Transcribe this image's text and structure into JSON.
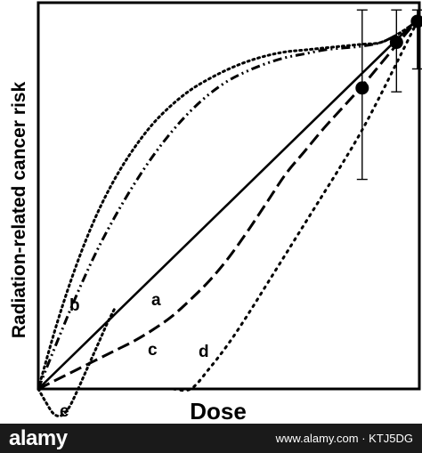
{
  "chart_data": {
    "type": "line",
    "xlabel": "Dose",
    "ylabel": "Radiation-related cancer risk",
    "xlim": [
      0,
      100
    ],
    "ylim": [
      -7,
      100
    ],
    "grid": false,
    "data_points": {
      "x": [
        85,
        94,
        99.5
      ],
      "y": [
        79,
        91,
        96.5
      ],
      "err_low": [
        55,
        78,
        84
      ],
      "err_high": [
        99.5,
        99.5,
        99.5
      ]
    },
    "series": [
      {
        "name": "a",
        "style": "solid",
        "x": [
          0,
          100
        ],
        "y": [
          0,
          97.5
        ]
      },
      {
        "name": "b",
        "style": "dotted",
        "x": [
          0,
          5,
          10,
          15,
          20,
          25,
          30,
          35,
          40,
          45,
          50,
          55,
          60,
          65,
          70,
          75,
          80,
          85,
          90,
          95,
          100
        ],
        "y": [
          0,
          17.5,
          32.5,
          45,
          55,
          63,
          69.5,
          74.5,
          78.5,
          81.5,
          84,
          86,
          87.5,
          88.5,
          89,
          89.5,
          90,
          90.5,
          91,
          93.5,
          97
        ]
      },
      {
        "name": "",
        "style": "dash-dot-dot",
        "x": [
          0,
          5,
          10,
          15,
          20,
          25,
          30,
          35,
          40,
          45,
          50,
          55,
          60,
          65,
          70,
          75,
          80,
          85,
          90,
          95,
          100
        ],
        "y": [
          0,
          12.5,
          24.5,
          35.5,
          45,
          53.5,
          61,
          67.5,
          73,
          77.5,
          81,
          83.5,
          85.5,
          87,
          88,
          89,
          89.5,
          90,
          91,
          93.5,
          97
        ]
      },
      {
        "name": "c",
        "style": "dashed",
        "x": [
          0,
          10,
          20,
          25,
          30,
          35,
          40,
          45,
          50,
          55,
          60,
          65,
          70,
          75,
          80,
          85,
          90,
          95,
          100
        ],
        "y": [
          0,
          5,
          10,
          12.5,
          15.5,
          19,
          23.5,
          28.5,
          34.5,
          41.5,
          49,
          56.5,
          62.5,
          68.5,
          74,
          79.5,
          85.5,
          91.5,
          97.5
        ]
      },
      {
        "name": "d",
        "style": "sparse-dotted",
        "x": [
          0,
          10,
          20,
          30,
          35,
          40,
          45,
          50,
          55,
          60,
          65,
          70,
          75,
          80,
          85,
          90,
          95,
          100
        ],
        "y": [
          0,
          0,
          0,
          0,
          0,
          0,
          5.5,
          12,
          19.5,
          27.5,
          35.5,
          43.5,
          51.5,
          59.5,
          68,
          77.5,
          87.5,
          97.5
        ]
      },
      {
        "name": "e",
        "style": "dotted",
        "x": [
          0,
          2,
          4,
          6,
          8,
          10,
          12,
          14,
          16,
          18,
          20
        ],
        "y": [
          0,
          -3.5,
          -6.5,
          -7,
          -5,
          -1,
          3.5,
          8,
          12.5,
          17,
          21
        ]
      }
    ]
  }
}
